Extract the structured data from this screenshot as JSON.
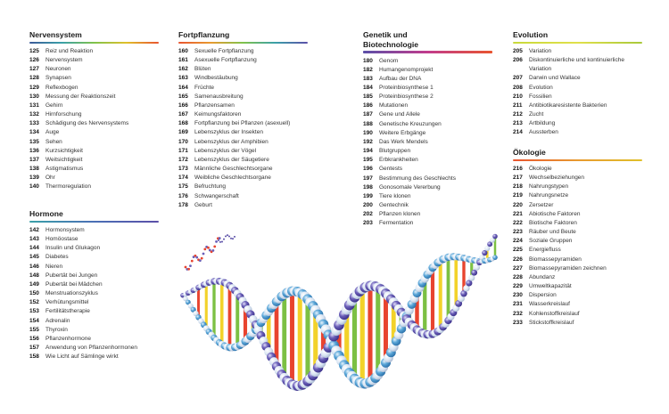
{
  "sections": {
    "nervensystem": {
      "title": "Nervensystem",
      "bar_gradient": [
        "#3b5998",
        "#3aa0a8",
        "#7fc24b",
        "#e0c02a",
        "#e8542f"
      ],
      "entries": [
        {
          "num": "125",
          "text": "Reiz und Reaktion"
        },
        {
          "num": "126",
          "text": "Nervensystem"
        },
        {
          "num": "127",
          "text": "Neuronen"
        },
        {
          "num": "128",
          "text": "Synapsen"
        },
        {
          "num": "129",
          "text": "Reflexbogen"
        },
        {
          "num": "130",
          "text": "Messung der Reaktionszeit"
        },
        {
          "num": "131",
          "text": "Gehirn"
        },
        {
          "num": "132",
          "text": "Hirnforschung"
        },
        {
          "num": "133",
          "text": "Schädigung des Nervensystems"
        },
        {
          "num": "134",
          "text": "Auge"
        },
        {
          "num": "135",
          "text": "Sehen"
        },
        {
          "num": "136",
          "text": "Kurzsichtigkeit"
        },
        {
          "num": "137",
          "text": "Weitsichtigkeit"
        },
        {
          "num": "138",
          "text": "Astigmatismus"
        },
        {
          "num": "139",
          "text": "Ohr"
        },
        {
          "num": "140",
          "text": "Thermoregulation"
        }
      ]
    },
    "hormone": {
      "title": "Hormone",
      "bar_gradient": [
        "#3aa0a8",
        "#4a6fb5",
        "#5b4fa8"
      ],
      "entries": [
        {
          "num": "142",
          "text": "Hormonsystem"
        },
        {
          "num": "143",
          "text": "Homöostase"
        },
        {
          "num": "144",
          "text": "Insulin und Glukagon"
        },
        {
          "num": "145",
          "text": "Diabetes"
        },
        {
          "num": "146",
          "text": "Nieren"
        },
        {
          "num": "148",
          "text": "Pubertät bei Jungen"
        },
        {
          "num": "149",
          "text": "Pubertät bei Mädchen"
        },
        {
          "num": "150",
          "text": "Menstruationszyklus"
        },
        {
          "num": "152",
          "text": "Verhütungsmittel"
        },
        {
          "num": "153",
          "text": "Fertilitätstherapie"
        },
        {
          "num": "154",
          "text": "Adrenalin"
        },
        {
          "num": "155",
          "text": "Thyroxin"
        },
        {
          "num": "156",
          "text": "Pflanzenhormone"
        },
        {
          "num": "157",
          "text": "Anwendung von Pflanzenhormonen"
        },
        {
          "num": "158",
          "text": "Wie Licht auf Sämlinge wirkt"
        }
      ]
    },
    "fortpflanzung": {
      "title": "Fortpflanzung",
      "bar_gradient": [
        "#e8542f",
        "#e89a2f",
        "#7fc24b",
        "#3aa0a8",
        "#5b4fa8"
      ],
      "entries": [
        {
          "num": "160",
          "text": "Sexuelle Fortpflanzung"
        },
        {
          "num": "161",
          "text": "Asexuelle Fortpflanzung"
        },
        {
          "num": "162",
          "text": "Blüten"
        },
        {
          "num": "163",
          "text": "Windbestäubung"
        },
        {
          "num": "164",
          "text": "Früchte"
        },
        {
          "num": "165",
          "text": "Samenausbreitung"
        },
        {
          "num": "166",
          "text": "Pflanzensamen"
        },
        {
          "num": "167",
          "text": "Keimungsfaktoren"
        },
        {
          "num": "168",
          "text": "Fortpflanzung bei Pflanzen (asexuell)"
        },
        {
          "num": "169",
          "text": "Lebenszyklus der Insekten"
        },
        {
          "num": "170",
          "text": "Lebenszyklus der Amphibien"
        },
        {
          "num": "171",
          "text": "Lebenszyklus der Vögel"
        },
        {
          "num": "172",
          "text": "Lebenszyklus der Säugetiere"
        },
        {
          "num": "173",
          "text": "Männliche Geschlechtsorgane"
        },
        {
          "num": "174",
          "text": "Weibliche Geschlechtsorgane"
        },
        {
          "num": "175",
          "text": "Befruchtung"
        },
        {
          "num": "176",
          "text": "Schwangerschaft"
        },
        {
          "num": "178",
          "text": "Geburt"
        }
      ]
    },
    "genetik": {
      "title_line1": "Genetik und",
      "title_line2": "Biotechnologie",
      "bar_gradient": [
        "#5b4fa8",
        "#c13c8c",
        "#e8542f"
      ],
      "entries": [
        {
          "num": "180",
          "text": "Genom"
        },
        {
          "num": "182",
          "text": "Humangenomprojekt"
        },
        {
          "num": "183",
          "text": "Aufbau der DNA"
        },
        {
          "num": "184",
          "text": "Proteinbiosynthese 1"
        },
        {
          "num": "185",
          "text": "Proteinbiosynthese 2"
        },
        {
          "num": "186",
          "text": "Mutationen"
        },
        {
          "num": "187",
          "text": "Gene und Allele"
        },
        {
          "num": "188",
          "text": "Genetische Kreuzungen"
        },
        {
          "num": "190",
          "text": "Weitere Erbgänge"
        },
        {
          "num": "192",
          "text": "Das Werk Mendels"
        },
        {
          "num": "194",
          "text": "Blutgruppen"
        },
        {
          "num": "195",
          "text": "Erbkrankheiten"
        },
        {
          "num": "196",
          "text": "Gentests"
        },
        {
          "num": "197",
          "text": "Bestimmung des Geschlechts"
        },
        {
          "num": "198",
          "text": "Gonosomale Vererbung"
        },
        {
          "num": "199",
          "text": "Tiere klonen"
        },
        {
          "num": "200",
          "text": "Gentechnik"
        },
        {
          "num": "202",
          "text": "Pflanzen klonen"
        },
        {
          "num": "203",
          "text": "Fermentation"
        }
      ]
    },
    "evolution": {
      "title": "Evolution",
      "bar_gradient": [
        "#c8d93a",
        "#e0e04a",
        "#a8c83a"
      ],
      "entries": [
        {
          "num": "205",
          "text": "Variation"
        },
        {
          "num": "206",
          "text": "Diskontinuierliche und kontinuierliche Variation"
        },
        {
          "num": "207",
          "text": "Darwin und Wallace"
        },
        {
          "num": "208",
          "text": "Evolution"
        },
        {
          "num": "210",
          "text": "Fossilien"
        },
        {
          "num": "211",
          "text": "Antibiotikaresistente Bakterien"
        },
        {
          "num": "212",
          "text": "Zucht"
        },
        {
          "num": "213",
          "text": "Artbildung"
        },
        {
          "num": "214",
          "text": "Aussterben"
        }
      ]
    },
    "oekologie": {
      "title": "Ökologie",
      "bar_gradient": [
        "#e8542f",
        "#e89a2f",
        "#e0c02a"
      ],
      "entries": [
        {
          "num": "216",
          "text": "Ökologie"
        },
        {
          "num": "217",
          "text": "Wechselbeziehungen"
        },
        {
          "num": "218",
          "text": "Nahrungstypen"
        },
        {
          "num": "219",
          "text": "Nahrungsnetze"
        },
        {
          "num": "220",
          "text": "Zersetzer"
        },
        {
          "num": "221",
          "text": "Abiotische Faktoren"
        },
        {
          "num": "222",
          "text": "Biotische Faktoren"
        },
        {
          "num": "223",
          "text": "Räuber und Beute"
        },
        {
          "num": "224",
          "text": "Soziale Gruppen"
        },
        {
          "num": "225",
          "text": "Energiefluss"
        },
        {
          "num": "226",
          "text": "Biomassepyramiden"
        },
        {
          "num": "227",
          "text": "Biomassepyramiden zeichnen"
        },
        {
          "num": "228",
          "text": "Abundanz"
        },
        {
          "num": "229",
          "text": "Umweltkapazität"
        },
        {
          "num": "230",
          "text": "Dispersion"
        },
        {
          "num": "231",
          "text": "Wasserkreislauf"
        },
        {
          "num": "232",
          "text": "Kohlenstoffkreislauf"
        },
        {
          "num": "233",
          "text": "Stickstoffkreislauf"
        }
      ]
    }
  },
  "dna_colors": {
    "backbone_light": "#d8e4f2",
    "backbone_blue": "#5aa6d8",
    "backbone_purple": "#6a5fb8",
    "rung_red": "#e8442f",
    "rung_yellow": "#f2d22a",
    "rung_green": "#7cc043"
  }
}
